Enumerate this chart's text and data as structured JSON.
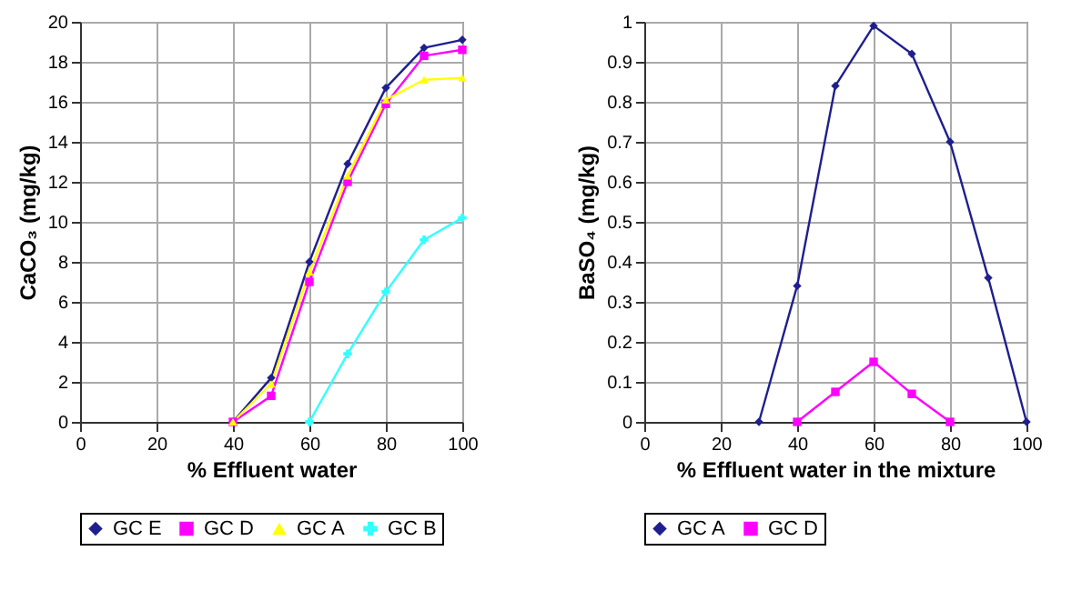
{
  "chart_data": [
    {
      "type": "line",
      "xlabel": "% Effluent water",
      "ylabel": "CaCO₃ (mg/kg)",
      "xlim": [
        0,
        100
      ],
      "xticks": [
        0,
        20,
        40,
        60,
        80,
        100
      ],
      "ylim": [
        0,
        20
      ],
      "yticks": [
        0,
        2,
        4,
        6,
        8,
        10,
        12,
        14,
        16,
        18,
        20
      ],
      "grid": true,
      "legend": "bottom",
      "x": [
        40,
        50,
        60,
        70,
        80,
        90,
        100
      ],
      "series": [
        {
          "name": "GC E",
          "color": "#1f1f8f",
          "marker": "diamond",
          "values": [
            0,
            2.2,
            8.0,
            12.9,
            16.7,
            18.7,
            19.1
          ]
        },
        {
          "name": "GC D",
          "color": "#ff00ff",
          "marker": "square",
          "values": [
            0,
            1.3,
            7.0,
            12.0,
            15.9,
            18.3,
            18.6
          ]
        },
        {
          "name": "GC A",
          "color": "#ffff00",
          "marker": "triangle",
          "values": [
            0,
            1.9,
            7.5,
            12.3,
            16.1,
            17.1,
            17.2
          ]
        },
        {
          "name": "GC B",
          "color": "#33ffff",
          "marker": "cross",
          "x": [
            60,
            70,
            80,
            90,
            100
          ],
          "values": [
            0,
            3.4,
            6.5,
            9.1,
            10.2
          ]
        }
      ]
    },
    {
      "type": "line",
      "xlabel": "% Effluent water in the mixture",
      "ylabel": "BaSO₄ (mg/kg)",
      "xlim": [
        0,
        100
      ],
      "xticks": [
        0,
        20,
        40,
        60,
        80,
        100
      ],
      "ylim": [
        0,
        1
      ],
      "yticks": [
        0,
        0.1,
        0.2,
        0.3,
        0.4,
        0.5,
        0.6,
        0.7,
        0.8,
        0.9,
        1
      ],
      "grid": true,
      "legend": "bottom",
      "series": [
        {
          "name": "GC A",
          "color": "#1f1f8f",
          "marker": "diamond",
          "x": [
            30,
            40,
            50,
            60,
            70,
            80,
            90,
            100
          ],
          "values": [
            0,
            0.34,
            0.84,
            0.99,
            0.92,
            0.7,
            0.36,
            0
          ]
        },
        {
          "name": "GC D",
          "color": "#ff00ff",
          "marker": "square",
          "x": [
            40,
            50,
            60,
            70,
            80
          ],
          "values": [
            0,
            0.075,
            0.15,
            0.07,
            0
          ]
        }
      ]
    }
  ]
}
